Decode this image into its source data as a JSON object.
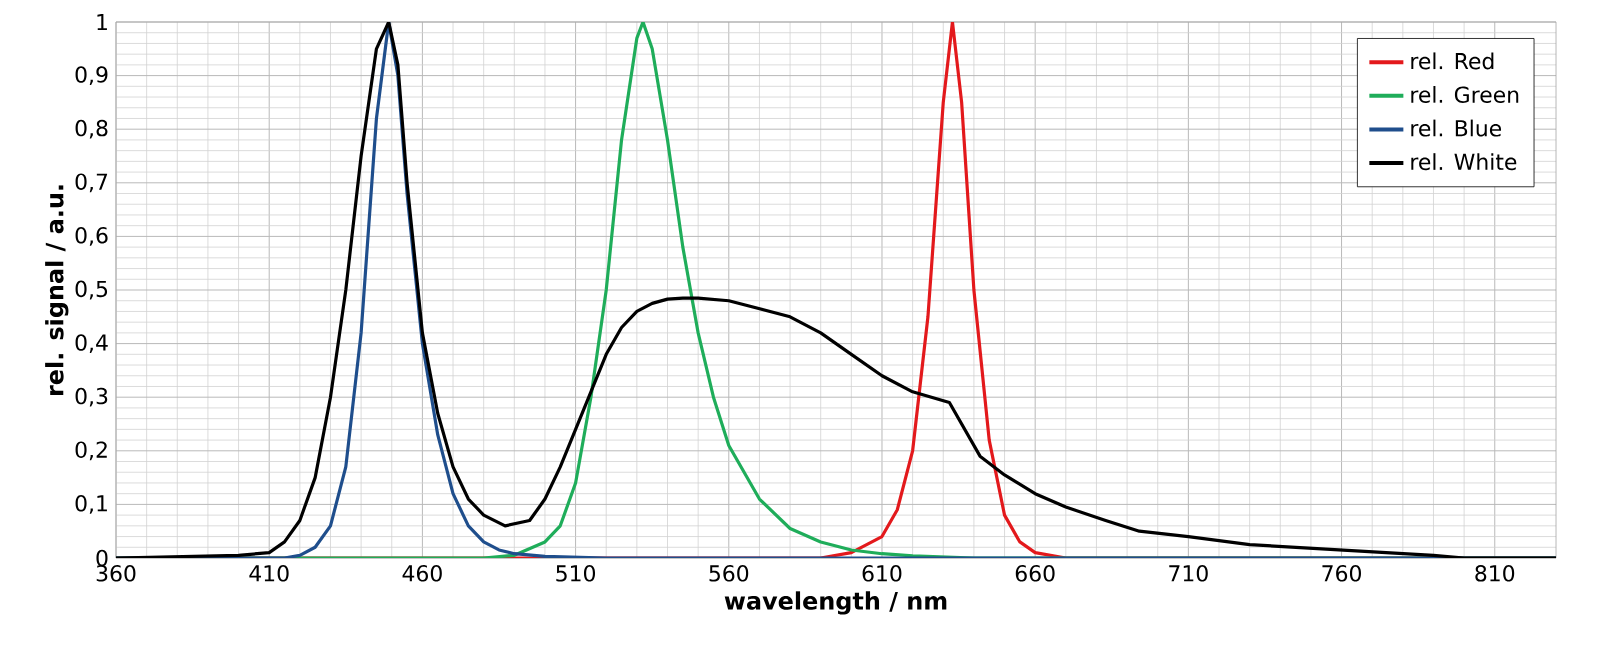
{
  "chart_data": {
    "type": "line",
    "xlabel": "wavelength / nm",
    "ylabel": "rel. signal / a.u.",
    "xlim": [
      360,
      830
    ],
    "xticks": [
      360,
      410,
      460,
      510,
      560,
      610,
      660,
      710,
      760,
      810
    ],
    "ylim": [
      0,
      1
    ],
    "yticks": [
      0,
      {
        "value": 0.1,
        "label": "0,1"
      },
      {
        "value": 0.2,
        "label": "0,2"
      },
      {
        "value": 0.3,
        "label": "0,3"
      },
      {
        "value": 0.4,
        "label": "0,4"
      },
      {
        "value": 0.5,
        "label": "0,5"
      },
      {
        "value": 0.6,
        "label": "0,6"
      },
      {
        "value": 0.7,
        "label": "0,7"
      },
      {
        "value": 0.8,
        "label": "0,8"
      },
      {
        "value": 0.9,
        "label": "0,9"
      },
      1
    ],
    "grid": true,
    "legend": "top right",
    "marker": "none",
    "line_style": "solid",
    "series": [
      {
        "name": "rel. Red",
        "color": "#e3191c",
        "x": [
          360,
          590,
          600,
          610,
          615,
          620,
          625,
          630,
          633,
          636,
          640,
          645,
          650,
          655,
          660,
          670,
          830
        ],
        "values": [
          0,
          0,
          0.01,
          0.04,
          0.09,
          0.2,
          0.45,
          0.85,
          1,
          0.85,
          0.5,
          0.22,
          0.08,
          0.03,
          0.01,
          0,
          0
        ]
      },
      {
        "name": "rel. Green",
        "color": "#1fad5a",
        "x": [
          360,
          480,
          490,
          500,
          505,
          510,
          515,
          520,
          525,
          530,
          532,
          535,
          540,
          545,
          550,
          555,
          560,
          570,
          580,
          590,
          600,
          610,
          620,
          640,
          830
        ],
        "values": [
          0,
          0,
          0.005,
          0.03,
          0.06,
          0.14,
          0.3,
          0.5,
          0.78,
          0.97,
          1,
          0.95,
          0.78,
          0.58,
          0.42,
          0.3,
          0.21,
          0.11,
          0.055,
          0.03,
          0.015,
          0.008,
          0.004,
          0,
          0
        ]
      },
      {
        "name": "rel. Blue",
        "color": "#1f4e8c",
        "x": [
          360,
          415,
          420,
          425,
          430,
          435,
          440,
          445,
          449,
          452,
          455,
          460,
          465,
          470,
          475,
          480,
          485,
          490,
          500,
          520,
          830
        ],
        "values": [
          0,
          0,
          0.005,
          0.02,
          0.06,
          0.17,
          0.42,
          0.82,
          1,
          0.9,
          0.68,
          0.4,
          0.23,
          0.12,
          0.06,
          0.03,
          0.015,
          0.008,
          0.003,
          0,
          0
        ]
      },
      {
        "name": "rel. White",
        "color": "#000000",
        "x": [
          360,
          400,
          410,
          415,
          420,
          425,
          430,
          435,
          440,
          445,
          449,
          452,
          455,
          460,
          465,
          470,
          475,
          480,
          487,
          495,
          500,
          505,
          510,
          515,
          520,
          525,
          530,
          535,
          540,
          545,
          550,
          560,
          570,
          580,
          590,
          600,
          610,
          620,
          632,
          642,
          650,
          660,
          670,
          683,
          694,
          710,
          730,
          760,
          790,
          800,
          830
        ],
        "values": [
          0,
          0.005,
          0.01,
          0.03,
          0.07,
          0.15,
          0.3,
          0.5,
          0.75,
          0.95,
          1,
          0.92,
          0.7,
          0.42,
          0.27,
          0.17,
          0.11,
          0.08,
          0.06,
          0.07,
          0.11,
          0.17,
          0.24,
          0.31,
          0.38,
          0.43,
          0.46,
          0.475,
          0.483,
          0.485,
          0.485,
          0.48,
          0.465,
          0.45,
          0.42,
          0.38,
          0.34,
          0.31,
          0.29,
          0.19,
          0.155,
          0.12,
          0.095,
          0.07,
          0.05,
          0.04,
          0.025,
          0.015,
          0.005,
          0,
          0
        ]
      }
    ]
  }
}
